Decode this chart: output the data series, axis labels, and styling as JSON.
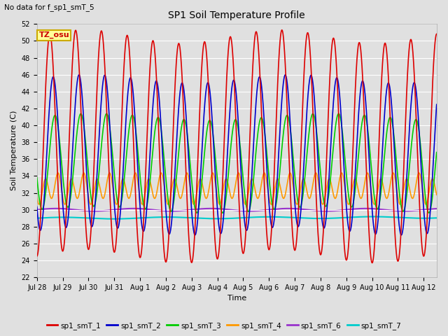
{
  "title": "SP1 Soil Temperature Profile",
  "xlabel": "Time",
  "ylabel": "Soil Temperature (C)",
  "no_data_text": "No data for f_sp1_smT_5",
  "tz_label": "TZ_osu",
  "ylim": [
    22,
    52
  ],
  "xlim": [
    0,
    15.5
  ],
  "yticks": [
    22,
    24,
    26,
    28,
    30,
    32,
    34,
    36,
    38,
    40,
    42,
    44,
    46,
    48,
    50,
    52
  ],
  "xtick_labels": [
    "Jul 28",
    "Jul 29",
    "Jul 30",
    "Jul 31",
    "Aug 1",
    "Aug 2",
    "Aug 3",
    "Aug 4",
    "Aug 5",
    "Aug 6",
    "Aug 7",
    "Aug 8",
    "Aug 9",
    "Aug 10",
    "Aug 11",
    "Aug 12"
  ],
  "xtick_positions": [
    0,
    1,
    2,
    3,
    4,
    5,
    6,
    7,
    8,
    9,
    10,
    11,
    12,
    13,
    14,
    15
  ],
  "plot_bg_color": "#e0e0e0",
  "grid_color": "#ffffff",
  "series": {
    "sp1_smT_1": {
      "color": "#dd0000",
      "lw": 1.2
    },
    "sp1_smT_2": {
      "color": "#0000cc",
      "lw": 1.2
    },
    "sp1_smT_3": {
      "color": "#00cc00",
      "lw": 1.2
    },
    "sp1_smT_4": {
      "color": "#ff9900",
      "lw": 1.2
    },
    "sp1_smT_6": {
      "color": "#9933cc",
      "lw": 1.5
    },
    "sp1_smT_7": {
      "color": "#00cccc",
      "lw": 1.5
    }
  },
  "legend_entries": [
    {
      "label": "sp1_smT_1",
      "color": "#dd0000"
    },
    {
      "label": "sp1_smT_2",
      "color": "#0000cc"
    },
    {
      "label": "sp1_smT_3",
      "color": "#00cc00"
    },
    {
      "label": "sp1_smT_4",
      "color": "#ff9900"
    },
    {
      "label": "sp1_smT_6",
      "color": "#9933cc"
    },
    {
      "label": "sp1_smT_7",
      "color": "#00cccc"
    }
  ]
}
